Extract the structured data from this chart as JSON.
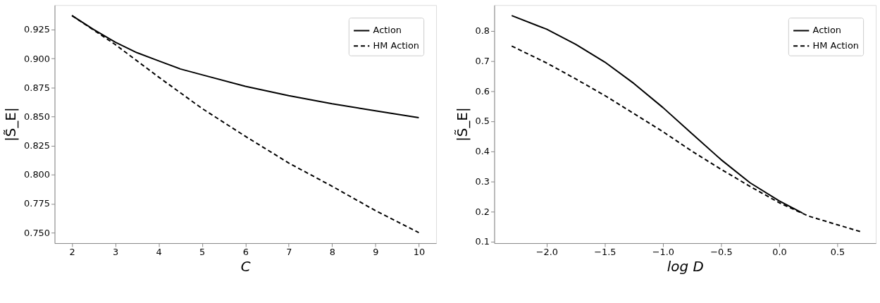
{
  "chart_data": [
    {
      "type": "line",
      "xlabel": "C",
      "ylabel": "|S̃_E|",
      "xlim": [
        1.6,
        10.4
      ],
      "ylim": [
        0.741,
        0.946
      ],
      "xticks": [
        2,
        3,
        4,
        5,
        6,
        7,
        8,
        9,
        10
      ],
      "yticks": [
        {
          "value": 0.75,
          "label": "0.750"
        },
        {
          "value": 0.775,
          "label": "0.775"
        },
        {
          "value": 0.8,
          "label": "0.800"
        },
        {
          "value": 0.825,
          "label": "0.825"
        },
        {
          "value": 0.85,
          "label": "0.850"
        },
        {
          "value": 0.875,
          "label": "0.875"
        },
        {
          "value": 0.9,
          "label": "0.900"
        },
        {
          "value": 0.925,
          "label": "0.925"
        }
      ],
      "grid": false,
      "legend": "top right",
      "series": [
        {
          "name": "Action",
          "color": "#000000",
          "line_style": "solid",
          "x": [
            2,
            2.5,
            3,
            3.5,
            4,
            4.5,
            5,
            6,
            7,
            8,
            9,
            10
          ],
          "values": [
            0.937,
            0.925,
            0.914,
            0.905,
            0.898,
            0.891,
            0.886,
            0.876,
            0.868,
            0.861,
            0.855,
            0.849
          ]
        },
        {
          "name": "HM Action",
          "color": "#000000",
          "line_style": "dashed",
          "x": [
            2,
            3,
            4,
            5,
            6,
            7,
            8,
            9,
            10
          ],
          "values": [
            0.937,
            0.912,
            0.884,
            0.857,
            0.833,
            0.81,
            0.79,
            0.769,
            0.75
          ]
        }
      ]
    },
    {
      "type": "line",
      "xlabel": "log D",
      "ylabel": "|S̃_E|",
      "xlim": [
        -2.45,
        0.83
      ],
      "ylim": [
        0.095,
        0.885
      ],
      "xticks": [
        {
          "value": -2.0,
          "label": "−2.0"
        },
        {
          "value": -1.5,
          "label": "−1.5"
        },
        {
          "value": -1.0,
          "label": "−1.0"
        },
        {
          "value": -0.5,
          "label": "−0.5"
        },
        {
          "value": 0.0,
          "label": "0.0"
        },
        {
          "value": 0.5,
          "label": "0.5"
        }
      ],
      "yticks": [
        0.1,
        0.2,
        0.3,
        0.4,
        0.5,
        0.6,
        0.7,
        0.8
      ],
      "grid": false,
      "legend": "top right",
      "series": [
        {
          "name": "Action",
          "color": "#000000",
          "line_style": "solid",
          "x": [
            -2.3,
            -2.0,
            -1.75,
            -1.5,
            -1.25,
            -1.0,
            -0.75,
            -0.5,
            -0.25,
            0.0,
            0.2
          ],
          "values": [
            0.85,
            0.805,
            0.755,
            0.696,
            0.625,
            0.545,
            0.458,
            0.372,
            0.295,
            0.235,
            0.195
          ]
        },
        {
          "name": "HM Action",
          "color": "#000000",
          "line_style": "dashed",
          "x": [
            -2.3,
            -2.0,
            -1.75,
            -1.5,
            -1.25,
            -1.0,
            -0.75,
            -0.5,
            -0.25,
            0.0,
            0.25,
            0.5,
            0.7
          ],
          "values": [
            0.749,
            0.693,
            0.64,
            0.585,
            0.525,
            0.465,
            0.4,
            0.34,
            0.283,
            0.229,
            0.185,
            0.156,
            0.133
          ]
        }
      ]
    }
  ]
}
